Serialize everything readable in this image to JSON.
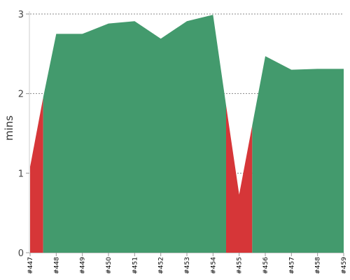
{
  "chart_data": {
    "type": "area",
    "ylabel": "mins",
    "ylim": [
      0,
      3
    ],
    "yticks": [
      "0",
      "1",
      "2",
      "3"
    ],
    "grid": true,
    "colors": {
      "success": "#439a6d",
      "failure": "#d63638",
      "grid": "#888888"
    },
    "x": [
      "#447",
      "#448",
      "#449",
      "#450",
      "#451",
      "#452",
      "#453",
      "#454",
      "#455",
      "#456",
      "#457",
      "#458",
      "#459"
    ],
    "points": [
      {
        "x": 0,
        "y": 1.08,
        "status": "failure"
      },
      {
        "x": 0.5,
        "y": 1.95,
        "status": "failure"
      },
      {
        "x": 1,
        "y": 2.75,
        "status": "success"
      },
      {
        "x": 2,
        "y": 2.75,
        "status": "success"
      },
      {
        "x": 3,
        "y": 2.88,
        "status": "success"
      },
      {
        "x": 4,
        "y": 2.91,
        "status": "success"
      },
      {
        "x": 5,
        "y": 2.69,
        "status": "success"
      },
      {
        "x": 6,
        "y": 2.91,
        "status": "success"
      },
      {
        "x": 7,
        "y": 2.99,
        "status": "success"
      },
      {
        "x": 7.5,
        "y": 1.85,
        "status": "failure"
      },
      {
        "x": 8,
        "y": 0.73,
        "status": "failure"
      },
      {
        "x": 8.5,
        "y": 1.6,
        "status": "failure"
      },
      {
        "x": 9,
        "y": 2.47,
        "status": "success"
      },
      {
        "x": 10,
        "y": 2.3,
        "status": "success"
      },
      {
        "x": 11,
        "y": 2.31,
        "status": "success"
      },
      {
        "x": 12,
        "y": 2.31,
        "status": "success"
      }
    ],
    "segments": [
      {
        "from": 0,
        "to": 0.5,
        "status": "failure"
      },
      {
        "from": 0.5,
        "to": 7.5,
        "status": "success"
      },
      {
        "from": 7.5,
        "to": 8.5,
        "status": "failure"
      },
      {
        "from": 8.5,
        "to": 12,
        "status": "success"
      }
    ]
  }
}
